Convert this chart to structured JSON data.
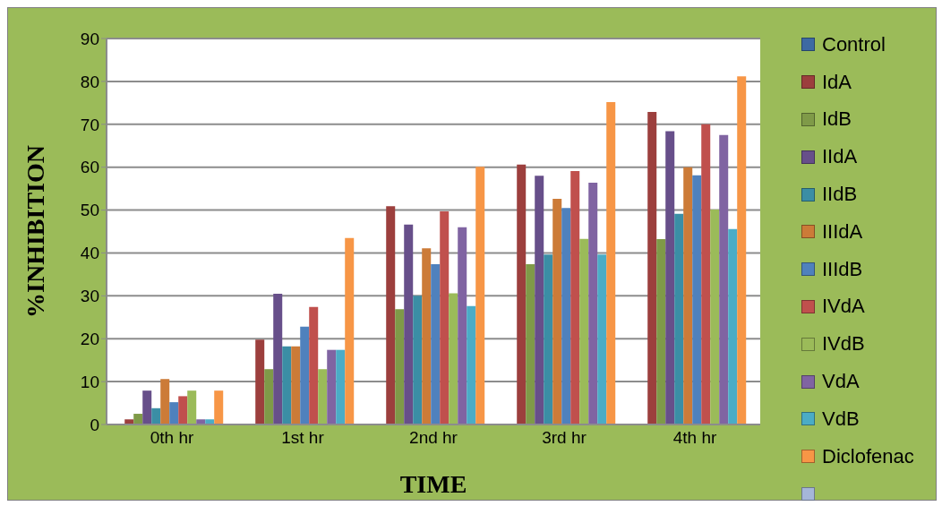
{
  "chart_data": {
    "type": "bar",
    "xlabel": "TIME",
    "ylabel": "%INHIBITION",
    "categories": [
      "0th hr",
      "1st hr",
      "2nd hr",
      "3rd hr",
      "4th hr"
    ],
    "series": [
      {
        "name": "Control",
        "color": "#3d6aa3",
        "values": [
          0,
          0,
          0,
          0,
          0
        ]
      },
      {
        "name": "IdA",
        "color": "#9c3f3d",
        "values": [
          1.2,
          19.8,
          50.9,
          60.6,
          72.9
        ]
      },
      {
        "name": "IdB",
        "color": "#7f9a48",
        "values": [
          2.5,
          12.9,
          26.9,
          37.4,
          43.2
        ]
      },
      {
        "name": "IIdA",
        "color": "#674f8a",
        "values": [
          7.9,
          30.5,
          46.6,
          58.0,
          68.4
        ]
      },
      {
        "name": "IIdB",
        "color": "#3b8ea5",
        "values": [
          3.8,
          18.2,
          30.0,
          39.6,
          49.1
        ]
      },
      {
        "name": "IIIdA",
        "color": "#cc7b38",
        "values": [
          10.6,
          18.2,
          41.1,
          52.6,
          60.0
        ]
      },
      {
        "name": "IIIdB",
        "color": "#4f81bd",
        "values": [
          5.2,
          22.8,
          37.4,
          50.5,
          58.1
        ]
      },
      {
        "name": "IVdA",
        "color": "#c0504d",
        "values": [
          6.6,
          27.4,
          49.7,
          59.1,
          70.0
        ]
      },
      {
        "name": "IVdB",
        "color": "#9bbb59",
        "values": [
          7.9,
          12.9,
          30.6,
          43.3,
          50.1
        ]
      },
      {
        "name": "VdA",
        "color": "#8064a2",
        "values": [
          1.2,
          17.4,
          46.0,
          56.4,
          67.5
        ]
      },
      {
        "name": "VdB",
        "color": "#4bacc6",
        "values": [
          1.2,
          17.4,
          27.6,
          39.6,
          45.6
        ]
      },
      {
        "name": "Diclofenac",
        "color": "#f79646",
        "values": [
          7.9,
          43.5,
          60.1,
          75.2,
          81.2
        ]
      },
      {
        "color": "#a5b6d9",
        "values": [
          null,
          null,
          null,
          null,
          null
        ]
      }
    ],
    "ylim": [
      0,
      90
    ],
    "yticks": [
      0,
      10,
      20,
      30,
      40,
      50,
      60,
      70,
      80,
      90
    ],
    "grid": "y",
    "legend": "right"
  }
}
